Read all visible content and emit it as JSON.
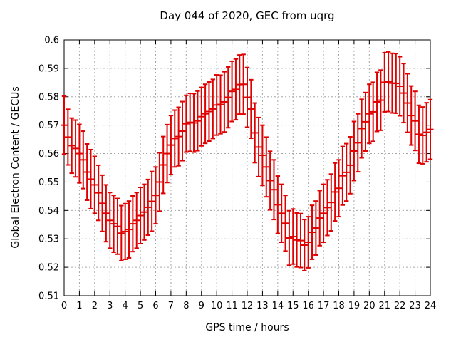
{
  "colors": {
    "bar": "#e00000",
    "grid": "#a6a6a6",
    "border": "#000000",
    "background": "#ffffff",
    "text": "#000000"
  },
  "chart_data": {
    "type": "scatter",
    "subtype": "yerrorbars",
    "title": "Day 044 of 2020, GEC from uqrg",
    "xlabel": "GPS time / hours",
    "ylabel": "Global Electron Content / GECUs",
    "xlim": [
      0,
      24
    ],
    "ylim": [
      0.51,
      0.6
    ],
    "grid": true,
    "legend": "none",
    "x_ticks": [
      0,
      1,
      2,
      3,
      4,
      5,
      6,
      7,
      8,
      9,
      10,
      11,
      12,
      13,
      14,
      15,
      16,
      17,
      18,
      19,
      20,
      21,
      22,
      23,
      24
    ],
    "y_ticks": [
      "0.51",
      "0.52",
      "0.53",
      "0.54",
      "0.55",
      "0.56",
      "0.57",
      "0.58",
      "0.59",
      "0.6"
    ],
    "series": [
      {
        "name": "GEC",
        "x": [
          0,
          0.25,
          0.5,
          0.75,
          1,
          1.25,
          1.5,
          1.75,
          2,
          2.25,
          2.5,
          2.75,
          3,
          3.25,
          3.5,
          3.75,
          4,
          4.25,
          4.5,
          4.75,
          5,
          5.25,
          5.5,
          5.75,
          6,
          6.25,
          6.5,
          6.75,
          7,
          7.25,
          7.5,
          7.75,
          8,
          8.25,
          8.5,
          8.75,
          9,
          9.25,
          9.5,
          9.75,
          10,
          10.25,
          10.5,
          10.75,
          11,
          11.25,
          11.5,
          11.75,
          12,
          12.25,
          12.5,
          12.75,
          13,
          13.25,
          13.5,
          13.75,
          14,
          14.25,
          14.5,
          14.75,
          15,
          15.25,
          15.5,
          15.75,
          16,
          16.25,
          16.5,
          16.75,
          17,
          17.25,
          17.5,
          17.75,
          18,
          18.25,
          18.5,
          18.75,
          19,
          19.25,
          19.5,
          19.75,
          20,
          20.25,
          20.5,
          20.75,
          21,
          21.25,
          21.5,
          21.75,
          22,
          22.25,
          22.5,
          22.75,
          23,
          23.25,
          23.5,
          23.75,
          24
        ],
        "y": [
          0.57,
          0.5658,
          0.5628,
          0.5618,
          0.56,
          0.5578,
          0.5535,
          0.551,
          0.549,
          0.5462,
          0.5425,
          0.539,
          0.5365,
          0.5353,
          0.5344,
          0.532,
          0.5326,
          0.5333,
          0.5353,
          0.5365,
          0.5382,
          0.5394,
          0.5411,
          0.5432,
          0.5453,
          0.55,
          0.556,
          0.56,
          0.563,
          0.5653,
          0.566,
          0.5679,
          0.5705,
          0.571,
          0.5708,
          0.5715,
          0.573,
          0.574,
          0.5748,
          0.5757,
          0.5771,
          0.5773,
          0.5782,
          0.5798,
          0.5819,
          0.5826,
          0.5843,
          0.5844,
          0.5798,
          0.5757,
          0.5673,
          0.5623,
          0.5594,
          0.5553,
          0.5505,
          0.5473,
          0.542,
          0.539,
          0.5355,
          0.5303,
          0.5308,
          0.5296,
          0.5294,
          0.5278,
          0.5288,
          0.5323,
          0.5338,
          0.5373,
          0.539,
          0.541,
          0.5428,
          0.5465,
          0.5478,
          0.5522,
          0.5534,
          0.5559,
          0.5609,
          0.5638,
          0.5688,
          0.5712,
          0.574,
          0.5747,
          0.5782,
          0.5788,
          0.5851,
          0.5853,
          0.5848,
          0.5847,
          0.5837,
          0.5813,
          0.5778,
          0.5734,
          0.5715,
          0.5668,
          0.5664,
          0.5675,
          0.5685
        ],
        "yerr": [
          0.0102,
          0.0098,
          0.0097,
          0.01,
          0.0103,
          0.0101,
          0.0099,
          0.0104,
          0.01,
          0.0097,
          0.0099,
          0.01,
          0.0098,
          0.01,
          0.0098,
          0.0097,
          0.0098,
          0.01,
          0.0098,
          0.0098,
          0.0099,
          0.0098,
          0.0098,
          0.0105,
          0.01,
          0.0103,
          0.01,
          0.0102,
          0.0104,
          0.01,
          0.0103,
          0.0104,
          0.01,
          0.0102,
          0.0103,
          0.0105,
          0.0103,
          0.0104,
          0.0104,
          0.0104,
          0.0106,
          0.0103,
          0.0106,
          0.0107,
          0.0106,
          0.0107,
          0.0104,
          0.0105,
          0.0105,
          0.0103,
          0.0105,
          0.0104,
          0.0106,
          0.0105,
          0.0103,
          0.0105,
          0.0101,
          0.0102,
          0.0098,
          0.0096,
          0.0097,
          0.0095,
          0.0095,
          0.009,
          0.009,
          0.0095,
          0.0095,
          0.0097,
          0.0102,
          0.0098,
          0.01,
          0.0102,
          0.01,
          0.0103,
          0.0101,
          0.01,
          0.0104,
          0.0102,
          0.0103,
          0.0103,
          0.0104,
          0.0104,
          0.0104,
          0.0106,
          0.0104,
          0.0105,
          0.0105,
          0.0105,
          0.0104,
          0.0104,
          0.0103,
          0.0104,
          0.0104,
          0.0102,
          0.01,
          0.0104,
          0.0105
        ]
      }
    ]
  }
}
